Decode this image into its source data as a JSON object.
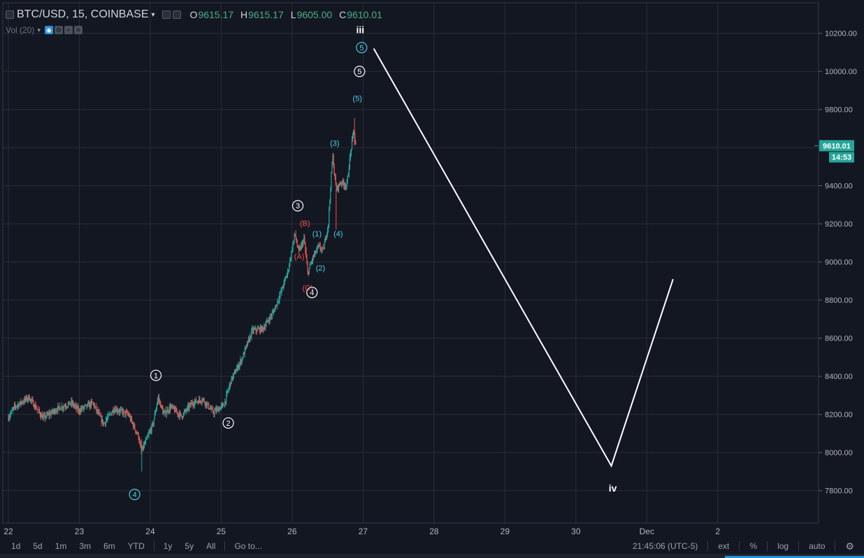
{
  "header": {
    "symbol": "BTC/USD, 15, COINBASE",
    "caret": "▾",
    "o_label": "O",
    "o_value": "9615.17",
    "h_label": "H",
    "h_value": "9615.17",
    "l_label": "L",
    "l_value": "9605.00",
    "c_label": "C",
    "c_value": "9610.01"
  },
  "volume_indicator": {
    "label": "Vol (20)",
    "caret": "▾"
  },
  "toolbar": {
    "timeframes": [
      "1d",
      "5d",
      "1m",
      "3m",
      "6m",
      "YTD",
      "1y",
      "5y",
      "All"
    ],
    "goto": "Go to...",
    "clock": "21:45:06 (UTC-5)",
    "ext": "ext",
    "percent": "%",
    "log": "log",
    "auto": "auto",
    "gear_icon": "gear-icon"
  },
  "colors": {
    "background": "#131722",
    "grid": "#2a2e39",
    "up": "#26a69a",
    "down": "#ef5350",
    "price_tag": "#26a69a",
    "wave_cyan": "#4dd0e1",
    "wave_red": "#ef5350",
    "wave_white": "#ffffff",
    "projection": "#ffffff"
  },
  "chart_data": {
    "type": "candlestick",
    "title": "BTC/USD, 15, COINBASE",
    "x_ticks": [
      "22",
      "23",
      "24",
      "25",
      "26",
      "27",
      "28",
      "29",
      "30",
      "Dec",
      "2"
    ],
    "y_ticks": [
      "7800.00",
      "8000.00",
      "8200.00",
      "8400.00",
      "8600.00",
      "8800.00",
      "9000.00",
      "9200.00",
      "9400.00",
      "9600.00",
      "9800.00",
      "10000.00",
      "10200.00"
    ],
    "ylim": [
      7630,
      10360
    ],
    "xlim_days": [
      22,
      33.5
    ],
    "grid": true,
    "last_price": "9610.01",
    "countdown": "14:53",
    "price_path": [
      [
        22.0,
        8180
      ],
      [
        22.1,
        8240
      ],
      [
        22.3,
        8290
      ],
      [
        22.5,
        8180
      ],
      [
        22.7,
        8230
      ],
      [
        22.9,
        8260
      ],
      [
        23.0,
        8220
      ],
      [
        23.2,
        8260
      ],
      [
        23.35,
        8150
      ],
      [
        23.5,
        8230
      ],
      [
        23.7,
        8200
      ],
      [
        23.85,
        8080
      ],
      [
        23.88,
        8000
      ],
      [
        23.95,
        8060
      ],
      [
        24.05,
        8150
      ],
      [
        24.12,
        8290
      ],
      [
        24.2,
        8200
      ],
      [
        24.3,
        8240
      ],
      [
        24.45,
        8190
      ],
      [
        24.6,
        8260
      ],
      [
        24.75,
        8280
      ],
      [
        24.9,
        8210
      ],
      [
        25.05,
        8250
      ],
      [
        25.15,
        8380
      ],
      [
        25.3,
        8490
      ],
      [
        25.45,
        8640
      ],
      [
        25.6,
        8650
      ],
      [
        25.75,
        8740
      ],
      [
        25.85,
        8840
      ],
      [
        25.95,
        8950
      ],
      [
        26.05,
        9150
      ],
      [
        26.1,
        9050
      ],
      [
        26.18,
        9120
      ],
      [
        26.23,
        8940
      ],
      [
        26.3,
        9020
      ],
      [
        26.38,
        9080
      ],
      [
        26.45,
        9060
      ],
      [
        26.52,
        9200
      ],
      [
        26.58,
        9560
      ],
      [
        26.63,
        9380
      ],
      [
        26.7,
        9420
      ],
      [
        26.78,
        9400
      ],
      [
        26.83,
        9560
      ],
      [
        26.88,
        9700
      ],
      [
        26.9,
        9610
      ]
    ],
    "projection": [
      [
        27.15,
        10120
      ],
      [
        30.5,
        7930
      ],
      [
        31.37,
        8910
      ]
    ],
    "wave_labels": [
      {
        "text": "4",
        "x": 23.78,
        "y": 7780,
        "style": "cyan-circle"
      },
      {
        "text": "1",
        "x": 24.08,
        "y": 8405,
        "style": "white-circle"
      },
      {
        "text": "2",
        "x": 25.1,
        "y": 8155,
        "style": "white-circle"
      },
      {
        "text": "3",
        "x": 26.08,
        "y": 9295,
        "style": "white-circle"
      },
      {
        "text": "4",
        "x": 26.28,
        "y": 8840,
        "style": "white-circle"
      },
      {
        "text": "5",
        "x": 26.95,
        "y": 10000,
        "style": "white-circle"
      },
      {
        "text": "5",
        "x": 26.98,
        "y": 10125,
        "style": "cyan-circle"
      },
      {
        "text": "(B)",
        "x": 26.18,
        "y": 9205,
        "style": "red"
      },
      {
        "text": "(A)",
        "x": 26.1,
        "y": 9030,
        "style": "red"
      },
      {
        "text": "(C)",
        "x": 26.22,
        "y": 8865,
        "style": "red"
      },
      {
        "text": "(1)",
        "x": 26.35,
        "y": 9150,
        "style": "cyan"
      },
      {
        "text": "(2)",
        "x": 26.4,
        "y": 8970,
        "style": "cyan"
      },
      {
        "text": "(3)",
        "x": 26.6,
        "y": 9625,
        "style": "cyan"
      },
      {
        "text": "(4)",
        "x": 26.65,
        "y": 9150,
        "style": "cyan"
      },
      {
        "text": "(5)",
        "x": 26.92,
        "y": 9860,
        "style": "cyan"
      },
      {
        "text": "iii",
        "x": 26.96,
        "y": 10215,
        "style": "white-bold"
      },
      {
        "text": "iv",
        "x": 30.52,
        "y": 7810,
        "style": "white-bold"
      }
    ]
  }
}
